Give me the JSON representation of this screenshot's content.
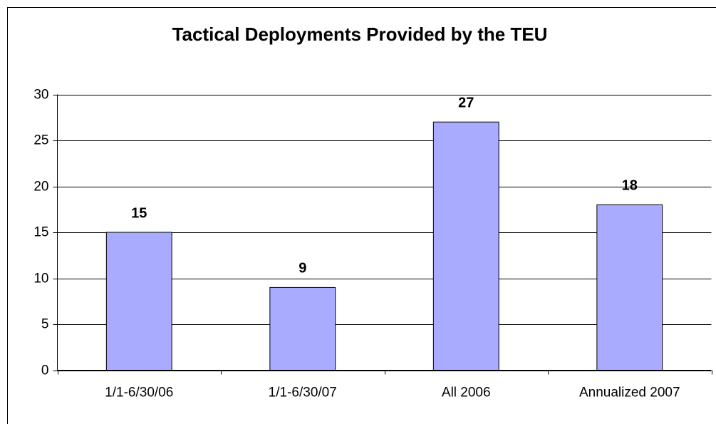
{
  "chart_data": {
    "type": "bar",
    "title": "Tactical Deployments Provided by the TEU",
    "categories": [
      "1/1-6/30/06",
      "1/1-6/30/07",
      "All 2006",
      "Annualized 2007"
    ],
    "values": [
      15,
      9,
      27,
      18
    ],
    "color": "#a8abff",
    "edge_color": "#000000",
    "ylim": [
      0,
      30
    ],
    "yticks": [
      0,
      5,
      10,
      15,
      20,
      25,
      30
    ],
    "grid": true,
    "data_labels": true
  }
}
